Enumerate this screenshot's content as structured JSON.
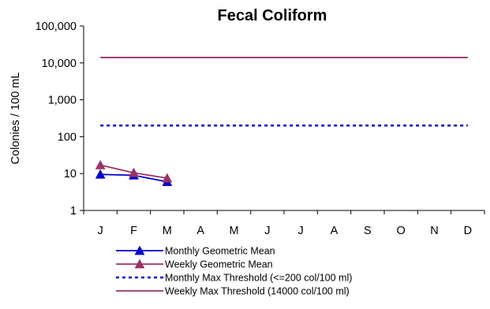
{
  "chart_data": {
    "type": "line",
    "title": "Fecal Coliform",
    "xlabel": "",
    "ylabel": "Colonies / 100 mL",
    "yscale": "log",
    "ylim": [
      1,
      100000
    ],
    "yticks": [
      1,
      10,
      100,
      1000,
      10000,
      100000
    ],
    "ytick_labels": [
      "1",
      "10",
      "100",
      "1,000",
      "10,000",
      "100,000"
    ],
    "categories": [
      "J",
      "F",
      "M",
      "A",
      "M",
      "J",
      "J",
      "A",
      "S",
      "O",
      "N",
      "D"
    ],
    "grid": false,
    "legend_position": "bottom",
    "series": [
      {
        "name": "Monthly Geometric Mean",
        "style": "line-with-triangle-markers",
        "color": "#0000cc",
        "values": [
          9.5,
          9,
          6,
          null,
          null,
          null,
          null,
          null,
          null,
          null,
          null,
          null
        ]
      },
      {
        "name": "Weekly Geometric Mean",
        "style": "line-with-triangle-markers",
        "color": "#993366",
        "values": [
          17,
          10.5,
          7.5,
          null,
          null,
          null,
          null,
          null,
          null,
          null,
          null,
          null
        ]
      },
      {
        "name": "Monthly Max Threshold (<=200 col/100 ml)",
        "style": "dotted-line",
        "color": "#0000cc",
        "values": [
          200,
          200,
          200,
          200,
          200,
          200,
          200,
          200,
          200,
          200,
          200,
          200
        ]
      },
      {
        "name": "Weekly Max Threshold (14000 col/100 ml)",
        "style": "solid-line",
        "color": "#993366",
        "values": [
          14000,
          14000,
          14000,
          14000,
          14000,
          14000,
          14000,
          14000,
          14000,
          14000,
          14000,
          14000
        ]
      }
    ]
  }
}
